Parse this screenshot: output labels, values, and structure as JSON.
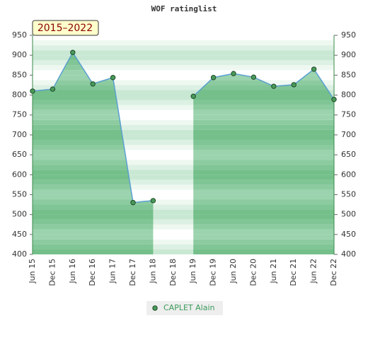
{
  "chart_data": {
    "type": "line",
    "title": "WOF ratinglist",
    "annotation": "2015–2022",
    "categories": [
      "Jun 15",
      "Dec 15",
      "Jun 16",
      "Dec 16",
      "Jun 17",
      "Dec 17",
      "Jun 18",
      "Dec 18",
      "Jun 19",
      "Dec 19",
      "Jun 20",
      "Dec 20",
      "Jun 21",
      "Dec 21",
      "Jun 22",
      "Dec 22"
    ],
    "series": [
      {
        "name": "CAPLET Alain",
        "color": "#4a9a5a",
        "values": [
          810,
          815,
          907,
          828,
          844,
          530,
          535,
          null,
          797,
          844,
          854,
          845,
          822,
          826,
          865,
          789
        ]
      }
    ],
    "ylim": [
      400,
      950
    ],
    "yticks": [
      400,
      450,
      500,
      550,
      600,
      650,
      700,
      750,
      800,
      850,
      900,
      950
    ]
  }
}
